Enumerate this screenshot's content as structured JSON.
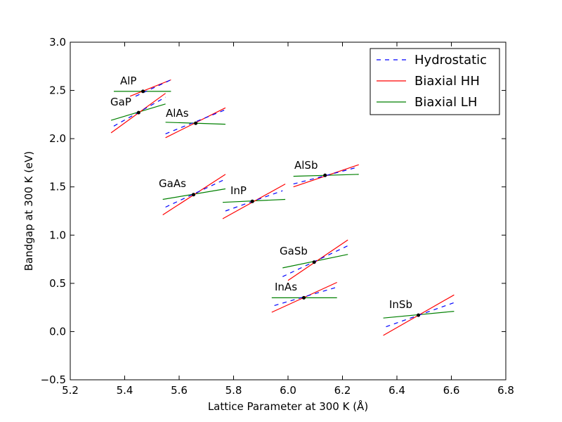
{
  "chart_data": {
    "type": "line",
    "title": "",
    "xlabel": "Lattice Parameter at 300 K (Å)",
    "ylabel": "Bandgap at 300 K (eV)",
    "xlim": [
      5.2,
      6.8
    ],
    "ylim": [
      -0.5,
      3.0
    ],
    "xticks": [
      "5.2",
      "5.4",
      "5.6",
      "5.8",
      "6.0",
      "6.2",
      "6.4",
      "6.6",
      "6.8"
    ],
    "yticks": [
      "−0.5",
      "0.0",
      "0.5",
      "1.0",
      "1.5",
      "2.0",
      "2.5",
      "3.0"
    ],
    "grid": false,
    "legend": {
      "position": "top-right",
      "entries": [
        {
          "label": "Hydrostatic",
          "color": "#0000ff",
          "style": "dashed"
        },
        {
          "label": "Biaxial HH",
          "color": "#ff0000",
          "style": "solid"
        },
        {
          "label": "Biaxial LH",
          "color": "#008000",
          "style": "solid"
        }
      ]
    },
    "materials": [
      {
        "name": "AlP",
        "a": 5.467,
        "eg": 2.49,
        "hydrostatic": [
          [
            5.44,
            2.44
          ],
          [
            5.57,
            2.61
          ]
        ],
        "biaxial_hh": [
          [
            5.42,
            2.44
          ],
          [
            5.57,
            2.61
          ]
        ],
        "biaxial_lh": [
          [
            5.36,
            2.49
          ],
          [
            5.57,
            2.49
          ]
        ]
      },
      {
        "name": "GaP",
        "a": 5.451,
        "eg": 2.27,
        "hydrostatic": [
          [
            5.36,
            2.13
          ],
          [
            5.55,
            2.43
          ]
        ],
        "biaxial_hh": [
          [
            5.35,
            2.06
          ],
          [
            5.55,
            2.47
          ]
        ],
        "biaxial_lh": [
          [
            5.35,
            2.19
          ],
          [
            5.55,
            2.36
          ]
        ]
      },
      {
        "name": "AlAs",
        "a": 5.661,
        "eg": 2.16,
        "hydrostatic": [
          [
            5.55,
            2.05
          ],
          [
            5.77,
            2.3
          ]
        ],
        "biaxial_hh": [
          [
            5.55,
            2.01
          ],
          [
            5.77,
            2.32
          ]
        ],
        "biaxial_lh": [
          [
            5.55,
            2.17
          ],
          [
            5.77,
            2.15
          ]
        ]
      },
      {
        "name": "GaAs",
        "a": 5.653,
        "eg": 1.42,
        "hydrostatic": [
          [
            5.55,
            1.29
          ],
          [
            5.77,
            1.58
          ]
        ],
        "biaxial_hh": [
          [
            5.54,
            1.21
          ],
          [
            5.77,
            1.63
          ]
        ],
        "biaxial_lh": [
          [
            5.54,
            1.37
          ],
          [
            5.77,
            1.48
          ]
        ]
      },
      {
        "name": "InP",
        "a": 5.869,
        "eg": 1.35,
        "hydrostatic": [
          [
            5.77,
            1.25
          ],
          [
            5.98,
            1.46
          ]
        ],
        "biaxial_hh": [
          [
            5.76,
            1.17
          ],
          [
            5.99,
            1.53
          ]
        ],
        "biaxial_lh": [
          [
            5.76,
            1.34
          ],
          [
            5.99,
            1.37
          ]
        ]
      },
      {
        "name": "AlSb",
        "a": 6.136,
        "eg": 1.62,
        "hydrostatic": [
          [
            6.02,
            1.53
          ],
          [
            6.25,
            1.7
          ]
        ],
        "biaxial_hh": [
          [
            6.02,
            1.5
          ],
          [
            6.26,
            1.73
          ]
        ],
        "biaxial_lh": [
          [
            6.02,
            1.61
          ],
          [
            6.26,
            1.63
          ]
        ]
      },
      {
        "name": "GaSb",
        "a": 6.096,
        "eg": 0.72,
        "hydrostatic": [
          [
            5.98,
            0.57
          ],
          [
            6.22,
            0.89
          ]
        ],
        "biaxial_hh": [
          [
            6.0,
            0.53
          ],
          [
            6.22,
            0.95
          ]
        ],
        "biaxial_lh": [
          [
            5.98,
            0.66
          ],
          [
            6.22,
            0.8
          ]
        ]
      },
      {
        "name": "InAs",
        "a": 6.058,
        "eg": 0.35,
        "hydrostatic": [
          [
            5.95,
            0.27
          ],
          [
            6.18,
            0.46
          ]
        ],
        "biaxial_hh": [
          [
            5.94,
            0.2
          ],
          [
            6.18,
            0.51
          ]
        ],
        "biaxial_lh": [
          [
            5.94,
            0.35
          ],
          [
            6.18,
            0.35
          ]
        ]
      },
      {
        "name": "InSb",
        "a": 6.479,
        "eg": 0.17,
        "hydrostatic": [
          [
            6.36,
            0.05
          ],
          [
            6.61,
            0.3
          ]
        ],
        "biaxial_hh": [
          [
            6.35,
            -0.04
          ],
          [
            6.61,
            0.38
          ]
        ],
        "biaxial_lh": [
          [
            6.35,
            0.14
          ],
          [
            6.61,
            0.21
          ]
        ]
      }
    ]
  }
}
